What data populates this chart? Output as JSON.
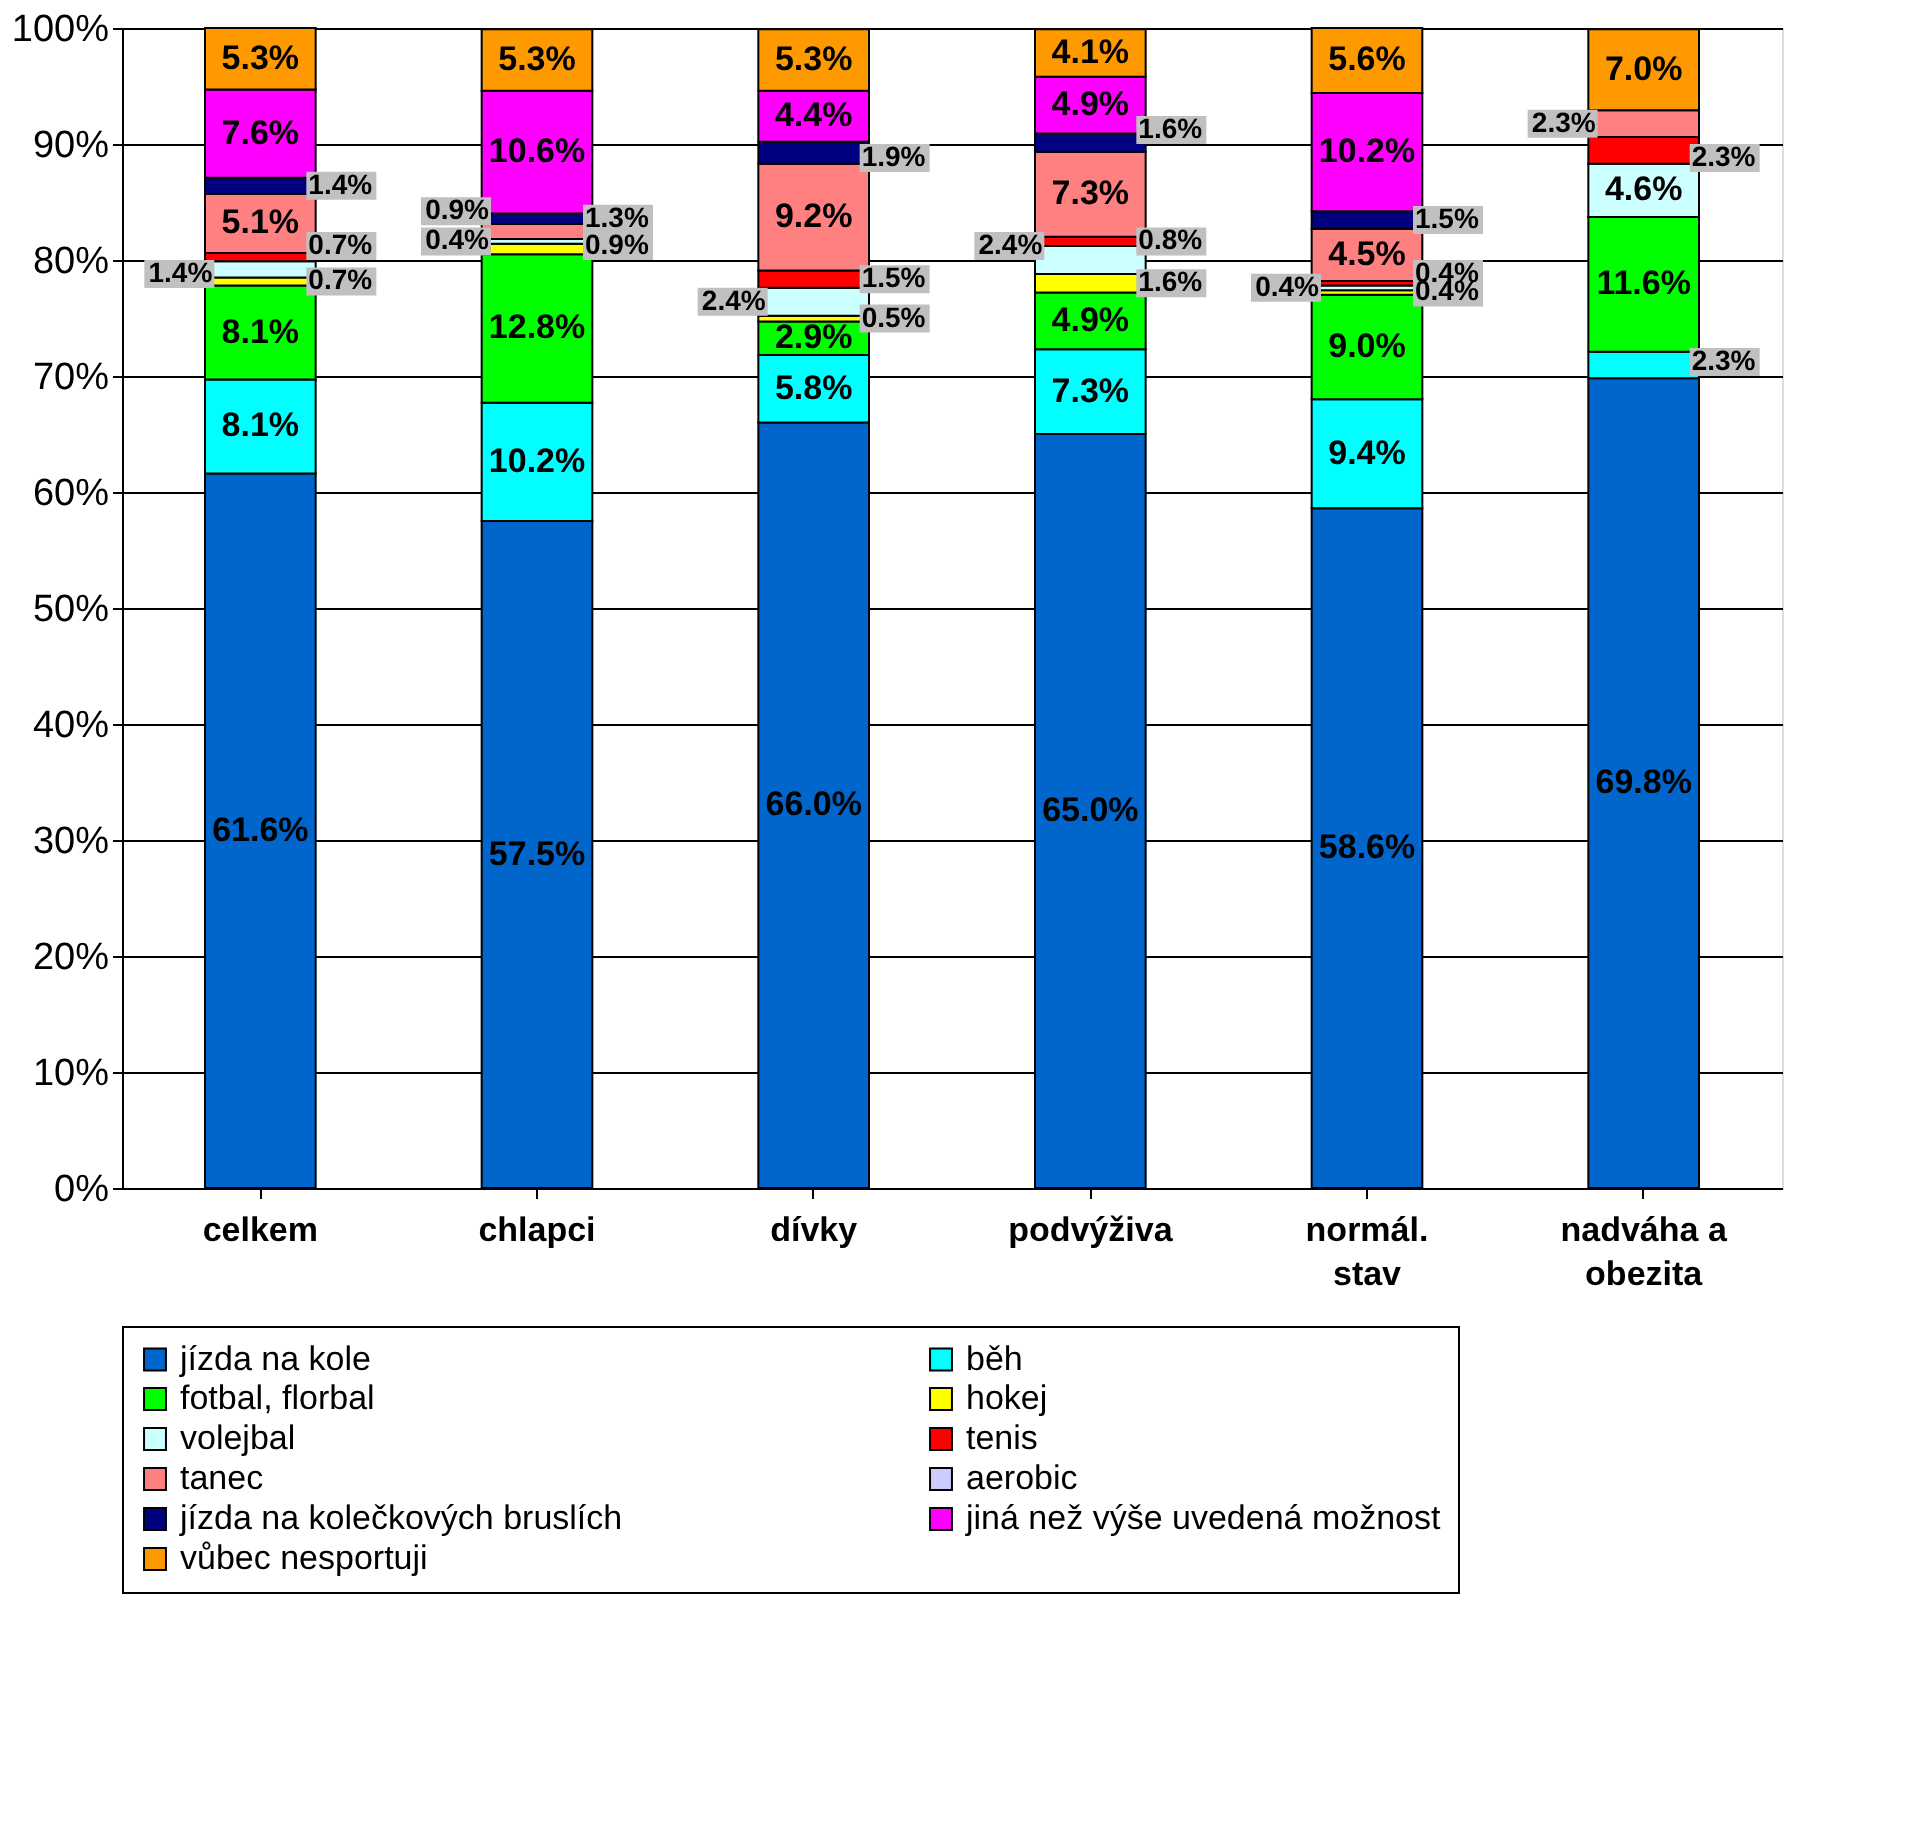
{
  "chart_data": {
    "type": "bar",
    "stacked": true,
    "categories": [
      "celkem",
      "chlapci",
      "dívky",
      "podvýživa",
      "normál. stav",
      "nadváha a obezita"
    ],
    "series": [
      {
        "name": "jízda na kole",
        "color": "#0066cc",
        "values": [
          61.6,
          57.5,
          66.0,
          65.0,
          58.6,
          69.8
        ],
        "value_labels": [
          "61.6%",
          "57.5%",
          "66.0%",
          "65.0%",
          "58.6%",
          "69.8%"
        ]
      },
      {
        "name": "běh",
        "color": "#00ffff",
        "values": [
          8.1,
          10.2,
          5.8,
          7.3,
          9.4,
          2.3
        ],
        "value_labels": [
          "8.1%",
          "10.2%",
          "5.8%",
          "7.3%",
          "9.4%",
          "2.3%"
        ]
      },
      {
        "name": "fotbal, florbal",
        "color": "#00ff00",
        "values": [
          8.1,
          12.8,
          2.9,
          4.9,
          9.0,
          11.6
        ],
        "value_labels": [
          "8.1%",
          "12.8%",
          "2.9%",
          "4.9%",
          "9.0%",
          "11.6%"
        ]
      },
      {
        "name": "hokej",
        "color": "#ffff00",
        "values": [
          0.7,
          0.9,
          0.5,
          1.6,
          0.4,
          null
        ],
        "value_labels": [
          "0.7%",
          "0.9%",
          "0.5%",
          "1.6%",
          "0.4%",
          null
        ]
      },
      {
        "name": "volejbal",
        "color": "#ccffff",
        "values": [
          1.4,
          0.4,
          2.4,
          2.4,
          0.4,
          4.6
        ],
        "value_labels": [
          "1.4%",
          "0.4%",
          "2.4%",
          "2.4%",
          "0.4%",
          "4.6%"
        ]
      },
      {
        "name": "tenis",
        "color": "#ff0000",
        "values": [
          0.7,
          null,
          1.5,
          0.8,
          0.4,
          2.3
        ],
        "value_labels": [
          "0.7%",
          null,
          "1.5%",
          "0.8%",
          "0.4%",
          "2.3%"
        ]
      },
      {
        "name": "tanec",
        "color": "#ff8080",
        "values": [
          5.1,
          1.3,
          9.2,
          7.3,
          4.5,
          2.3
        ],
        "value_labels": [
          "5.1%",
          "1.3%",
          "9.2%",
          "7.3%",
          "4.5%",
          "2.3%"
        ]
      },
      {
        "name": "aerobic",
        "color": "#ccccff",
        "values": [
          null,
          null,
          null,
          null,
          null,
          null
        ],
        "value_labels": [
          null,
          null,
          null,
          null,
          null,
          null
        ]
      },
      {
        "name": "jízda na kolečkových bruslích",
        "color": "#000080",
        "values": [
          1.4,
          0.9,
          1.9,
          1.6,
          1.5,
          null
        ],
        "value_labels": [
          "1.4%",
          "0.9%",
          "1.9%",
          "1.6%",
          "1.5%",
          null
        ]
      },
      {
        "name": "jiná než výše uvedená možnost",
        "color": "#ff00ff",
        "values": [
          7.6,
          10.6,
          4.4,
          4.9,
          10.2,
          null
        ],
        "value_labels": [
          "7.6%",
          "10.6%",
          "4.4%",
          "4.9%",
          "10.2%",
          null
        ]
      },
      {
        "name": "vůbec nesportuji",
        "color": "#ff9900",
        "values": [
          5.3,
          5.3,
          5.3,
          4.1,
          5.6,
          7.0
        ],
        "value_labels": [
          "5.3%",
          "5.3%",
          "5.3%",
          "4.1%",
          "5.6%",
          "7.0%"
        ]
      }
    ],
    "ylim": [
      0,
      100
    ],
    "yticks": [
      {
        "value": 0,
        "label": "0%"
      },
      {
        "value": 10,
        "label": "10%"
      },
      {
        "value": 20,
        "label": "20%"
      },
      {
        "value": 30,
        "label": "30%"
      },
      {
        "value": 40,
        "label": "40%"
      },
      {
        "value": 50,
        "label": "50%"
      },
      {
        "value": 60,
        "label": "60%"
      },
      {
        "value": 70,
        "label": "70%"
      },
      {
        "value": 80,
        "label": "80%"
      },
      {
        "value": 90,
        "label": "90%"
      },
      {
        "value": 100,
        "label": "100%"
      }
    ],
    "grid": "y",
    "legend": "bottom"
  }
}
